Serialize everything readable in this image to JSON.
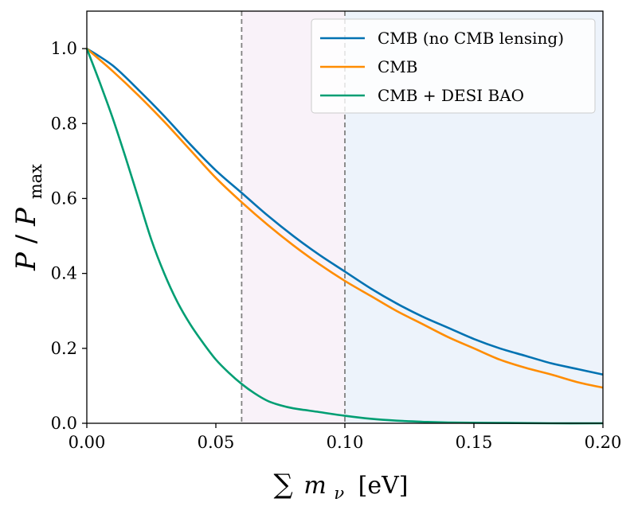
{
  "chart_data": {
    "type": "line",
    "xlabel": {
      "sum": "∑",
      "var": "m",
      "sub": "ν",
      "unit": "[eV]"
    },
    "ylabel": {
      "num": "P",
      "slash": "/",
      "den": "P",
      "sub": "max"
    },
    "xlim": [
      0.0,
      0.2
    ],
    "ylim": [
      0.0,
      1.1
    ],
    "xticks": [
      0.0,
      0.05,
      0.1,
      0.15,
      0.2
    ],
    "xtick_labels": [
      "0.00",
      "0.05",
      "0.10",
      "0.15",
      "0.20"
    ],
    "yticks": [
      0.0,
      0.2,
      0.4,
      0.6,
      0.8,
      1.0
    ],
    "ytick_labels": [
      "0.0",
      "0.2",
      "0.4",
      "0.6",
      "0.8",
      "1.0"
    ],
    "grid": false,
    "legend_position": "top-right",
    "vlines": [
      0.06,
      0.1
    ],
    "shaded_regions": [
      {
        "x0": 0.06,
        "x1": 0.1,
        "color": "#f9f2f9"
      },
      {
        "x0": 0.1,
        "x1": 0.2,
        "color": "#edf3fb"
      }
    ],
    "series": [
      {
        "name": "CMB (no CMB lensing)",
        "color": "#0072b2",
        "x": [
          0.0,
          0.01,
          0.02,
          0.03,
          0.04,
          0.05,
          0.06,
          0.07,
          0.08,
          0.09,
          0.1,
          0.11,
          0.12,
          0.13,
          0.14,
          0.15,
          0.16,
          0.17,
          0.18,
          0.19,
          0.2
        ],
        "y": [
          1.0,
          0.955,
          0.89,
          0.82,
          0.745,
          0.675,
          0.615,
          0.555,
          0.5,
          0.45,
          0.405,
          0.36,
          0.32,
          0.285,
          0.255,
          0.225,
          0.2,
          0.18,
          0.16,
          0.145,
          0.13
        ]
      },
      {
        "name": "CMB",
        "color": "#ff8c00",
        "x": [
          0.0,
          0.01,
          0.02,
          0.03,
          0.04,
          0.05,
          0.06,
          0.07,
          0.08,
          0.09,
          0.1,
          0.11,
          0.12,
          0.13,
          0.14,
          0.15,
          0.16,
          0.17,
          0.18,
          0.19,
          0.2
        ],
        "y": [
          1.0,
          0.94,
          0.875,
          0.805,
          0.73,
          0.655,
          0.59,
          0.53,
          0.475,
          0.425,
          0.38,
          0.34,
          0.3,
          0.265,
          0.23,
          0.2,
          0.17,
          0.148,
          0.13,
          0.11,
          0.095
        ]
      },
      {
        "name": "CMB + DESI BAO",
        "color": "#009e73",
        "x": [
          0.0,
          0.005,
          0.01,
          0.015,
          0.02,
          0.025,
          0.03,
          0.035,
          0.04,
          0.045,
          0.05,
          0.055,
          0.06,
          0.065,
          0.07,
          0.075,
          0.08,
          0.09,
          0.1,
          0.11,
          0.12,
          0.13,
          0.14,
          0.16,
          0.18,
          0.2
        ],
        "y": [
          1.0,
          0.91,
          0.815,
          0.71,
          0.6,
          0.49,
          0.4,
          0.325,
          0.265,
          0.215,
          0.17,
          0.135,
          0.105,
          0.08,
          0.06,
          0.048,
          0.04,
          0.03,
          0.02,
          0.012,
          0.007,
          0.004,
          0.002,
          0.001,
          0.0,
          0.0
        ]
      }
    ]
  }
}
